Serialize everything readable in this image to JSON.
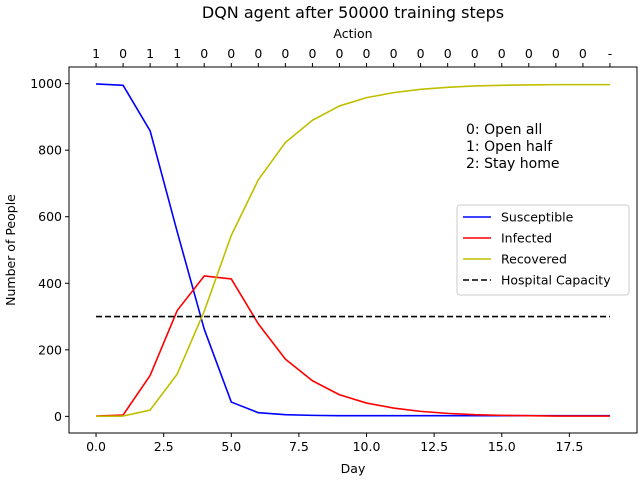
{
  "chart_data": {
    "type": "line",
    "title": "DQN agent after 50000 training steps",
    "xlabel": "Day",
    "ylabel": "Number of People",
    "top_axis_label": "Action",
    "xlim": [
      -1,
      20
    ],
    "ylim": [
      -50,
      1050
    ],
    "x_ticks": [
      0.0,
      2.5,
      5.0,
      7.5,
      10.0,
      12.5,
      15.0,
      17.5
    ],
    "x_tick_labels": [
      "0.0",
      "2.5",
      "5.0",
      "7.5",
      "10.0",
      "12.5",
      "15.0",
      "17.5"
    ],
    "y_ticks": [
      0,
      200,
      400,
      600,
      800,
      1000
    ],
    "y_tick_labels": [
      "0",
      "200",
      "400",
      "600",
      "800",
      "1000"
    ],
    "top_ticks": [
      0,
      1,
      2,
      3,
      4,
      5,
      6,
      7,
      8,
      9,
      10,
      11,
      12,
      13,
      14,
      15,
      16,
      17,
      18,
      19
    ],
    "top_tick_labels": [
      "1",
      "0",
      "1",
      "1",
      "0",
      "0",
      "0",
      "0",
      "0",
      "0",
      "0",
      "0",
      "0",
      "0",
      "0",
      "0",
      "0",
      "0",
      "0",
      "-"
    ],
    "x": [
      0,
      1,
      2,
      3,
      4,
      5,
      6,
      7,
      8,
      9,
      10,
      11,
      12,
      13,
      14,
      15,
      16,
      17,
      18,
      19
    ],
    "series": [
      {
        "name": "Susceptible",
        "color": "#0000ff",
        "dash": "solid",
        "values": [
          999,
          995,
          858,
          555,
          262,
          43,
          11,
          5,
          3,
          2,
          2,
          2,
          2,
          2,
          2,
          2,
          2,
          2,
          2,
          2
        ]
      },
      {
        "name": "Infected",
        "color": "#ff0000",
        "dash": "solid",
        "values": [
          1,
          4,
          123,
          318,
          422,
          413,
          278,
          172,
          107,
          65,
          40,
          25,
          15,
          9,
          5,
          3,
          2,
          1,
          1,
          1
        ]
      },
      {
        "name": "Recovered",
        "color": "#bfbf00",
        "dash": "solid",
        "values": [
          0,
          1,
          19,
          127,
          316,
          544,
          711,
          823,
          890,
          933,
          958,
          973,
          983,
          989,
          993,
          995,
          996,
          997,
          997,
          997
        ]
      },
      {
        "name": "Hospital Capacity",
        "color": "#000000",
        "dash": "dashed",
        "values": [
          300,
          300,
          300,
          300,
          300,
          300,
          300,
          300,
          300,
          300,
          300,
          300,
          300,
          300,
          300,
          300,
          300,
          300,
          300,
          300
        ]
      }
    ],
    "legend": {
      "placement": "center-right"
    },
    "annotation_lines": [
      "0: Open all",
      "1: Open half",
      "2: Stay home"
    ],
    "grid": false
  }
}
